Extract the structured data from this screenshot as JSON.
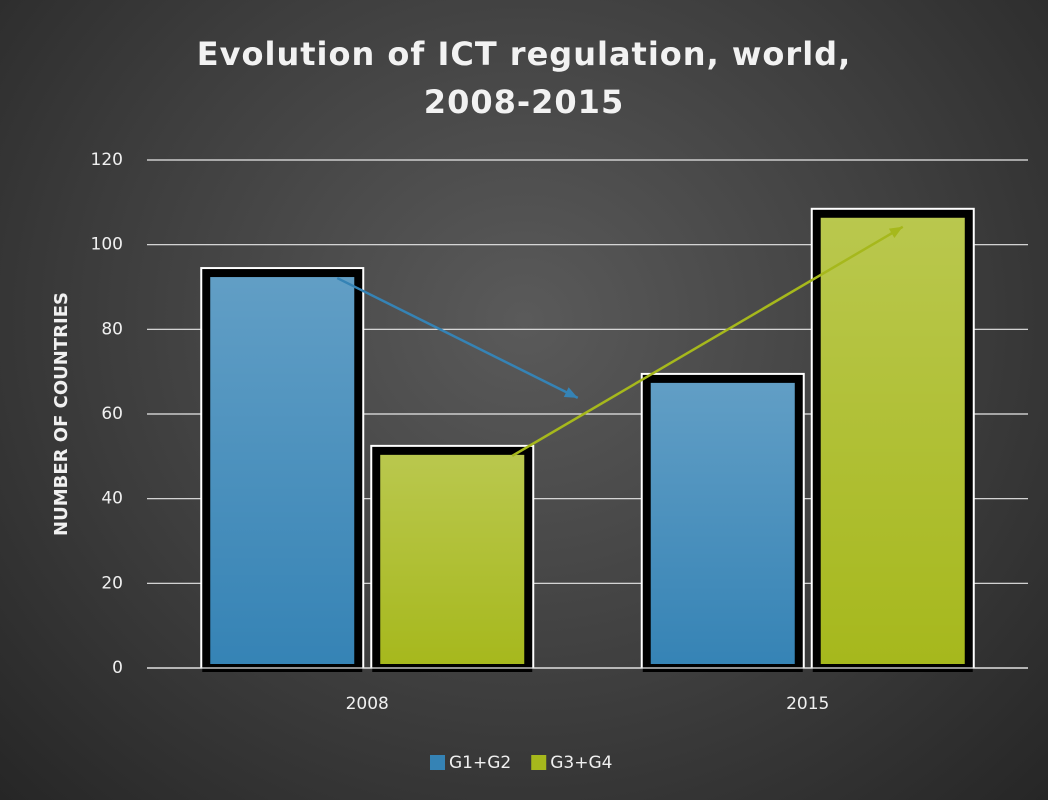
{
  "chart_data": {
    "type": "bar",
    "title": "Evolution of ICT regulation, world, 2008-2015",
    "y_label": "NUMBER OF COUNTRIES",
    "categories": [
      "2008",
      "2015"
    ],
    "series": [
      {
        "name": "G1+G2",
        "color": "#3583b5",
        "values": [
          94,
          69
        ]
      },
      {
        "name": "G3+G4",
        "color": "#a6b81c",
        "values": [
          52,
          108
        ]
      }
    ],
    "ylim": [
      0,
      120
    ],
    "yticks": [
      0,
      20,
      40,
      60,
      80,
      100,
      120
    ],
    "grid": true,
    "legend": "bottom"
  }
}
